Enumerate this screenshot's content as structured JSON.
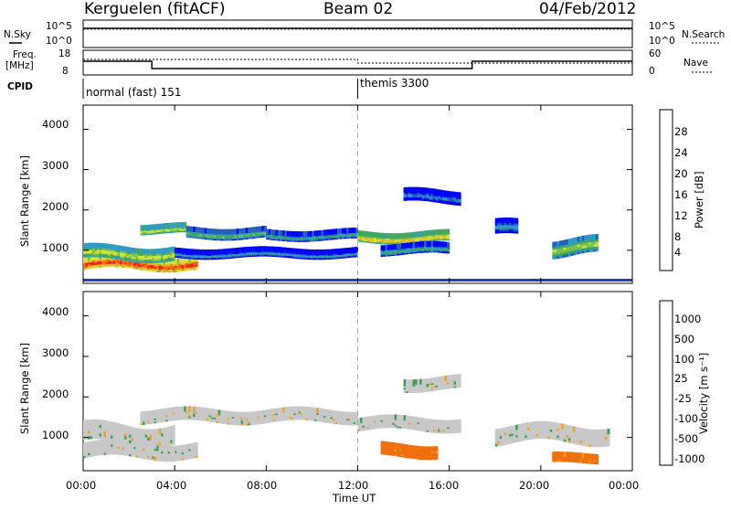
{
  "header": {
    "station": "Kerguelen (fitACF)",
    "beam": "Beam 02",
    "date": "04/Feb/2012"
  },
  "top_panels": {
    "nsky": {
      "label": "N.Sky",
      "ticks": [
        "10^5",
        "10^0"
      ]
    },
    "nsearch": {
      "label": "N.Search",
      "ticks": [
        "10^5",
        "10^0"
      ]
    },
    "freq": {
      "label_line1": "Freq.",
      "label_line2": "[MHz]",
      "ticks": [
        "18",
        "8"
      ]
    },
    "nave": {
      "label": "Nave",
      "ticks": [
        "60",
        "0"
      ]
    },
    "cpid": {
      "label": "CPID",
      "modes": [
        "normal (fast) 151",
        "themis 3300"
      ]
    }
  },
  "axes": {
    "xlabel": "Time UT",
    "xticks": [
      "00:00",
      "04:00",
      "08:00",
      "12:00",
      "16:00",
      "20:00",
      "00:00"
    ],
    "ylabel": "Slant Range [km]",
    "yticks": [
      "1000",
      "2000",
      "3000",
      "4000"
    ]
  },
  "power_scale": {
    "title": "Power [dB]",
    "ticks": [
      "28",
      "24",
      "20",
      "16",
      "12",
      "8",
      "4"
    ],
    "colors": [
      "#0000ff",
      "#1f5fc0",
      "#2f9ac8",
      "#3fa85a",
      "#7cc24a",
      "#d6e23a",
      "#f0b020",
      "#f07010",
      "#f02020",
      "#ff0000"
    ]
  },
  "velocity_scale": {
    "title": "Velocity [m s⁻¹]",
    "ticks": [
      "1000",
      "500",
      "100",
      "25",
      "-25",
      "-100",
      "-500",
      "-1000"
    ],
    "colors": [
      "#2030c0",
      "#2f7ab0",
      "#3aa050",
      "#76c040",
      "#c8c8c8",
      "#c8c8c8",
      "#f0a020",
      "#f07010",
      "#f04010",
      "#ff0000"
    ]
  },
  "chart_data": [
    {
      "type": "heatmap",
      "panel": "power",
      "ylabel": "Slant Range [km]",
      "xlabel": "Time UT",
      "xlim_hours": [
        0,
        24
      ],
      "ylim_km": [
        180,
        4600
      ],
      "colorbar": {
        "title": "Power [dB]",
        "range": [
          0,
          30
        ]
      },
      "bands": [
        {
          "x": [
            0.0,
            5.0
          ],
          "center_km": 750,
          "width_km": 200,
          "db": 26
        },
        {
          "x": [
            0.0,
            4.0
          ],
          "center_km": 1000,
          "width_km": 220,
          "db": 18
        },
        {
          "x": [
            2.5,
            4.5
          ],
          "center_km": 1600,
          "width_km": 120,
          "db": 18
        },
        {
          "x": [
            4.5,
            8.0
          ],
          "center_km": 1500,
          "width_km": 150,
          "db": 14
        },
        {
          "x": [
            4.0,
            12.0
          ],
          "center_km": 1000,
          "width_km": 120,
          "db": 10
        },
        {
          "x": [
            8.0,
            12.0
          ],
          "center_km": 1450,
          "width_km": 130,
          "db": 12
        },
        {
          "x": [
            12.0,
            16.0
          ],
          "center_km": 1400,
          "width_km": 150,
          "db": 20
        },
        {
          "x": [
            13.0,
            16.0
          ],
          "center_km": 1100,
          "width_km": 150,
          "db": 12
        },
        {
          "x": [
            14.0,
            16.5
          ],
          "center_km": 2400,
          "width_km": 200,
          "db": 8
        },
        {
          "x": [
            18.0,
            19.0
          ],
          "center_km": 1600,
          "width_km": 250,
          "db": 10
        },
        {
          "x": [
            20.5,
            22.5
          ],
          "center_km": 1150,
          "width_km": 300,
          "db": 16
        }
      ]
    },
    {
      "type": "heatmap",
      "panel": "velocity",
      "ylabel": "Slant Range [km]",
      "xlabel": "Time UT",
      "xlim_hours": [
        0,
        24
      ],
      "ylim_km": [
        180,
        4600
      ],
      "colorbar": {
        "title": "Velocity [m s⁻¹]",
        "range": [
          -1000,
          1000
        ]
      },
      "bands": [
        {
          "x": [
            0.0,
            5.0
          ],
          "center_km": 750,
          "width_km": 250,
          "v": 0
        },
        {
          "x": [
            0.0,
            4.0
          ],
          "center_km": 1150,
          "width_km": 350,
          "v": 0
        },
        {
          "x": [
            2.5,
            12.0
          ],
          "center_km": 1600,
          "width_km": 200,
          "v": 0
        },
        {
          "x": [
            12.0,
            16.5
          ],
          "center_km": 1400,
          "width_km": 200,
          "v": 0
        },
        {
          "x": [
            13.0,
            15.5
          ],
          "center_km": 750,
          "width_km": 200,
          "v": -500
        },
        {
          "x": [
            14.0,
            16.5
          ],
          "center_km": 2400,
          "width_km": 200,
          "v": 0
        },
        {
          "x": [
            20.5,
            22.5
          ],
          "center_km": 550,
          "width_km": 120,
          "v": -500
        },
        {
          "x": [
            18.0,
            23.0
          ],
          "center_km": 1150,
          "width_km": 300,
          "v": 0
        }
      ]
    }
  ]
}
